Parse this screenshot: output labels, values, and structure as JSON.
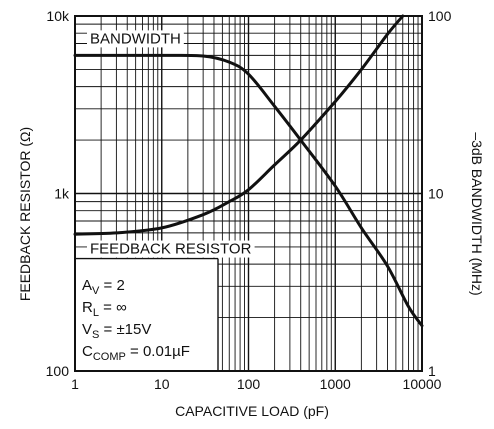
{
  "chart_data": {
    "type": "line",
    "title": "",
    "xlabel": "CAPACITIVE LOAD (pF)",
    "ylabel_left": "FEEDBACK RESISTOR (Ω)",
    "ylabel_right": "–3dB BANDWIDTH (MHz)",
    "x_scale": "log",
    "y_left_scale": "log",
    "y_right_scale": "log",
    "xlim": [
      1,
      10000
    ],
    "ylim_left": [
      100,
      10000
    ],
    "ylim_right": [
      1,
      100
    ],
    "x_ticks": [
      "1",
      "10",
      "100",
      "1000",
      "10000"
    ],
    "y_left_ticks": [
      "10k",
      "1k",
      "100"
    ],
    "y_right_ticks": [
      "100",
      "10",
      "1"
    ],
    "grid": "log minor and major",
    "series": [
      {
        "name": "BANDWIDTH",
        "axis": "right",
        "x": [
          1,
          3,
          10,
          30,
          60,
          100,
          200,
          400,
          1000,
          2000,
          4000,
          7000,
          10000
        ],
        "y": [
          60,
          60,
          60,
          59.5,
          55,
          47,
          31,
          20,
          11,
          6.4,
          3.9,
          2.3,
          1.8
        ]
      },
      {
        "name": "FEEDBACK RESISTOR",
        "axis": "left",
        "x": [
          1,
          3,
          10,
          30,
          60,
          100,
          200,
          400,
          1000,
          2000,
          4000,
          6000
        ],
        "y": [
          590,
          600,
          640,
          760,
          900,
          1050,
          1450,
          2000,
          3300,
          5000,
          7900,
          10000
        ]
      }
    ],
    "annotations": {
      "conditions": [
        {
          "main": "A",
          "sub": "V",
          "rest": " = 2"
        },
        {
          "main": "R",
          "sub": "L",
          "rest": " = ∞"
        },
        {
          "main": "V",
          "sub": "S",
          "rest": " = ±15V"
        },
        {
          "main": "C",
          "sub": "COMP",
          "rest": " = 0.01µF"
        }
      ]
    }
  }
}
